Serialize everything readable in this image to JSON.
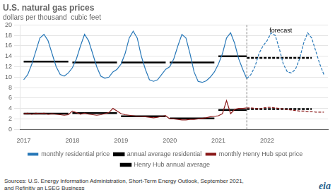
{
  "chart_data": {
    "type": "line",
    "title": "U.S. natural gas prices",
    "subtitle": "dollars per thousand  cubic feet",
    "source": "Sources: U.S. Energy Information Administration, Short-Term Energy Outlook, September 2021,\nand Refinitiv an LSEG Business",
    "logo": "eia",
    "xlim": [
      2016.92,
      2023.25
    ],
    "xticks": [
      2017,
      2018,
      2019,
      2020,
      2021,
      2022
    ],
    "ylim": [
      0,
      20
    ],
    "yticks": [
      0,
      2,
      4,
      6,
      8,
      10,
      12,
      14,
      16,
      18,
      20
    ],
    "grid": "y",
    "legend": "bottom",
    "vlines": [
      2021.583
    ],
    "annotations": [
      {
        "text": "forecast",
        "x": 2022.05,
        "y": 19.5
      }
    ],
    "x": [
      2017.0,
      2017.083,
      2017.167,
      2017.25,
      2017.333,
      2017.417,
      2017.5,
      2017.583,
      2017.667,
      2017.75,
      2017.833,
      2017.917,
      2018.0,
      2018.083,
      2018.167,
      2018.25,
      2018.333,
      2018.417,
      2018.5,
      2018.583,
      2018.667,
      2018.75,
      2018.833,
      2018.917,
      2019.0,
      2019.083,
      2019.167,
      2019.25,
      2019.333,
      2019.417,
      2019.5,
      2019.583,
      2019.667,
      2019.75,
      2019.833,
      2019.917,
      2020.0,
      2020.083,
      2020.167,
      2020.25,
      2020.333,
      2020.417,
      2020.5,
      2020.583,
      2020.667,
      2020.75,
      2020.833,
      2020.917,
      2021.0,
      2021.083,
      2021.167,
      2021.25,
      2021.333,
      2021.417,
      2021.5,
      2021.583,
      2021.667,
      2021.75,
      2021.833,
      2021.917,
      2022.0,
      2022.083,
      2022.167,
      2022.25,
      2022.333,
      2022.417,
      2022.5,
      2022.583,
      2022.667,
      2022.75,
      2022.833,
      2022.917,
      2023.0,
      2023.083,
      2023.167
    ],
    "series": [
      {
        "name": "monthly residential price",
        "color": "#2878b8",
        "values": [
          9.5,
          10.5,
          12.5,
          15.0,
          17.5,
          18.2,
          17.0,
          14.5,
          12.0,
          10.5,
          10.2,
          10.8,
          11.8,
          13.5,
          16.0,
          18.2,
          17.0,
          14.5,
          12.0,
          10.2,
          9.8,
          10.0,
          11.0,
          11.5,
          12.5,
          14.5,
          17.5,
          18.8,
          17.5,
          14.0,
          11.5,
          9.5,
          9.2,
          9.5,
          10.5,
          11.5,
          12.0,
          13.5,
          16.0,
          18.2,
          17.5,
          14.5,
          11.0,
          9.2,
          9.0,
          9.3,
          10.0,
          11.0,
          12.5,
          14.5,
          17.5,
          18.5,
          16.5,
          13.5,
          11.5,
          9.7,
          10.5,
          12.0,
          14.5,
          16.0,
          17.0,
          18.5,
          18.0,
          15.5,
          12.5,
          11.0,
          10.8,
          11.5,
          13.5,
          16.5,
          18.5,
          17.5,
          15.0,
          12.5,
          10.5
        ]
      },
      {
        "name": "annual average residential",
        "color": "black",
        "segments": [
          {
            "x_start": 2017.0,
            "x_end": 2017.917,
            "y": 13.0
          },
          {
            "x_start": 2018.0,
            "x_end": 2018.917,
            "y": 12.8
          },
          {
            "x_start": 2019.0,
            "x_end": 2019.917,
            "y": 12.8
          },
          {
            "x_start": 2020.0,
            "x_end": 2020.917,
            "y": 12.8
          },
          {
            "x_start": 2021.0,
            "x_end": 2021.583,
            "y": 14.0
          },
          {
            "x_start": 2021.583,
            "x_end": 2022.917,
            "y": 13.7
          }
        ]
      },
      {
        "name": "monthly Henry Hub spot price",
        "color": "#8b1a1a",
        "values": [
          3.0,
          3.1,
          2.9,
          3.1,
          3.0,
          3.1,
          2.9,
          3.0,
          2.9,
          2.8,
          2.7,
          2.8,
          3.5,
          3.2,
          2.9,
          3.1,
          2.9,
          2.8,
          2.7,
          2.8,
          3.0,
          3.2,
          4.0,
          3.5,
          3.0,
          2.8,
          2.7,
          2.6,
          2.5,
          2.5,
          2.4,
          2.3,
          2.2,
          2.3,
          2.5,
          2.6,
          2.0,
          2.0,
          1.9,
          1.8,
          1.8,
          1.9,
          1.9,
          2.0,
          2.1,
          2.2,
          2.4,
          2.5,
          2.6,
          3.0,
          5.5,
          3.0,
          3.8,
          4.0,
          4.0,
          4.1,
          4.1,
          4.0,
          3.9,
          4.1,
          4.2,
          4.2,
          4.1,
          4.0,
          3.9,
          3.8,
          3.7,
          3.6,
          3.5,
          3.5,
          3.4,
          3.4,
          3.3,
          3.3,
          3.3
        ]
      },
      {
        "name": "Henry Hub annual average",
        "color": "black",
        "segments": [
          {
            "x_start": 2017.0,
            "x_end": 2017.917,
            "y": 3.0
          },
          {
            "x_start": 2018.0,
            "x_end": 2018.917,
            "y": 3.1
          },
          {
            "x_start": 2019.0,
            "x_end": 2019.917,
            "y": 2.5
          },
          {
            "x_start": 2020.0,
            "x_end": 2020.917,
            "y": 2.1
          },
          {
            "x_start": 2021.0,
            "x_end": 2021.583,
            "y": 3.7
          },
          {
            "x_start": 2021.583,
            "x_end": 2022.917,
            "y": 3.9
          }
        ]
      }
    ]
  }
}
